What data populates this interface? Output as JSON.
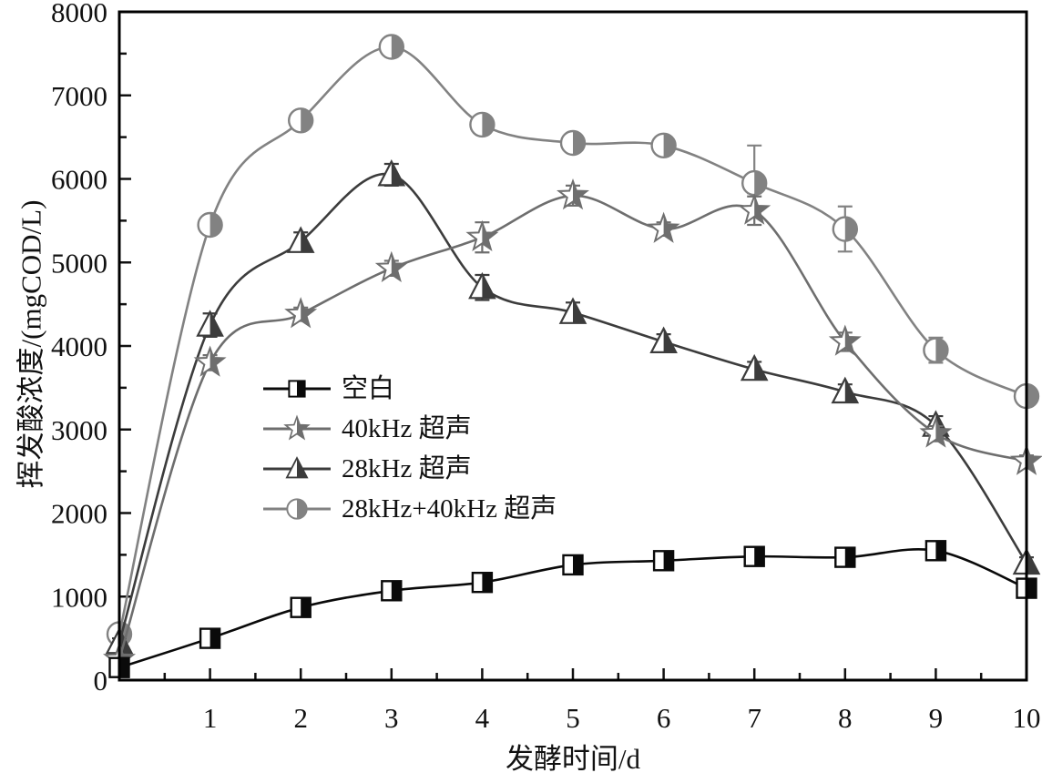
{
  "figure": {
    "background": "#ffffff",
    "frame_color": "#000000",
    "text_color": "#111111"
  },
  "chart_data": {
    "type": "line",
    "title": "",
    "xlabel": "发酵时间/d",
    "ylabel": "挥发酸浓度/(mgCOD/L)",
    "xlim": [
      0,
      10
    ],
    "ylim": [
      0,
      8000
    ],
    "x_ticks": [
      1,
      2,
      3,
      4,
      5,
      6,
      7,
      8,
      9,
      10
    ],
    "y_ticks": [
      0,
      1000,
      2000,
      3000,
      4000,
      5000,
      6000,
      7000,
      8000
    ],
    "x_minor_step": 0.5,
    "y_minor_step": 500,
    "grid": false,
    "legend_position": "inside-left-middle",
    "x": [
      0,
      1,
      2,
      3,
      4,
      5,
      6,
      7,
      8,
      9,
      10
    ],
    "series": [
      {
        "name": "空白",
        "key": "blank",
        "marker": "half-square",
        "color": "#0a0a0a",
        "values": [
          150,
          500,
          870,
          1070,
          1170,
          1380,
          1430,
          1480,
          1470,
          1550,
          1100
        ],
        "errors": [
          50,
          60,
          60,
          70,
          70,
          60,
          60,
          60,
          70,
          110,
          90
        ]
      },
      {
        "name": "40kHz 超声",
        "key": "us-40khz",
        "marker": "half-star",
        "color": "#6e6e6e",
        "values": [
          250,
          3800,
          4380,
          4930,
          5300,
          5800,
          5400,
          5620,
          4050,
          2950,
          2620
        ],
        "errors": [
          50,
          90,
          80,
          90,
          180,
          120,
          80,
          170,
          110,
          90,
          70
        ]
      },
      {
        "name": "28kHz 超声",
        "key": "us-28khz",
        "marker": "half-triangle",
        "color": "#3c3c3c",
        "values": [
          450,
          4250,
          5250,
          6050,
          4700,
          4400,
          4050,
          3720,
          3450,
          3050,
          1400
        ],
        "errors": [
          50,
          140,
          110,
          130,
          150,
          120,
          90,
          90,
          90,
          110,
          70
        ]
      },
      {
        "name": "28kHz+40kHz 超声",
        "key": "us-28-40khz",
        "marker": "half-circle",
        "color": "#828282",
        "values": [
          550,
          5450,
          6700,
          7580,
          6650,
          6430,
          6400,
          5950,
          5400,
          3950,
          3400
        ],
        "errors": [
          60,
          90,
          80,
          70,
          90,
          80,
          70,
          [
            450,
            120
          ],
          270,
          150,
          90
        ]
      }
    ]
  },
  "legend": {
    "items": [
      {
        "label": "空白"
      },
      {
        "label": "40kHz 超声"
      },
      {
        "label": "28kHz 超声"
      },
      {
        "label": "28kHz+40kHz 超声"
      }
    ]
  }
}
